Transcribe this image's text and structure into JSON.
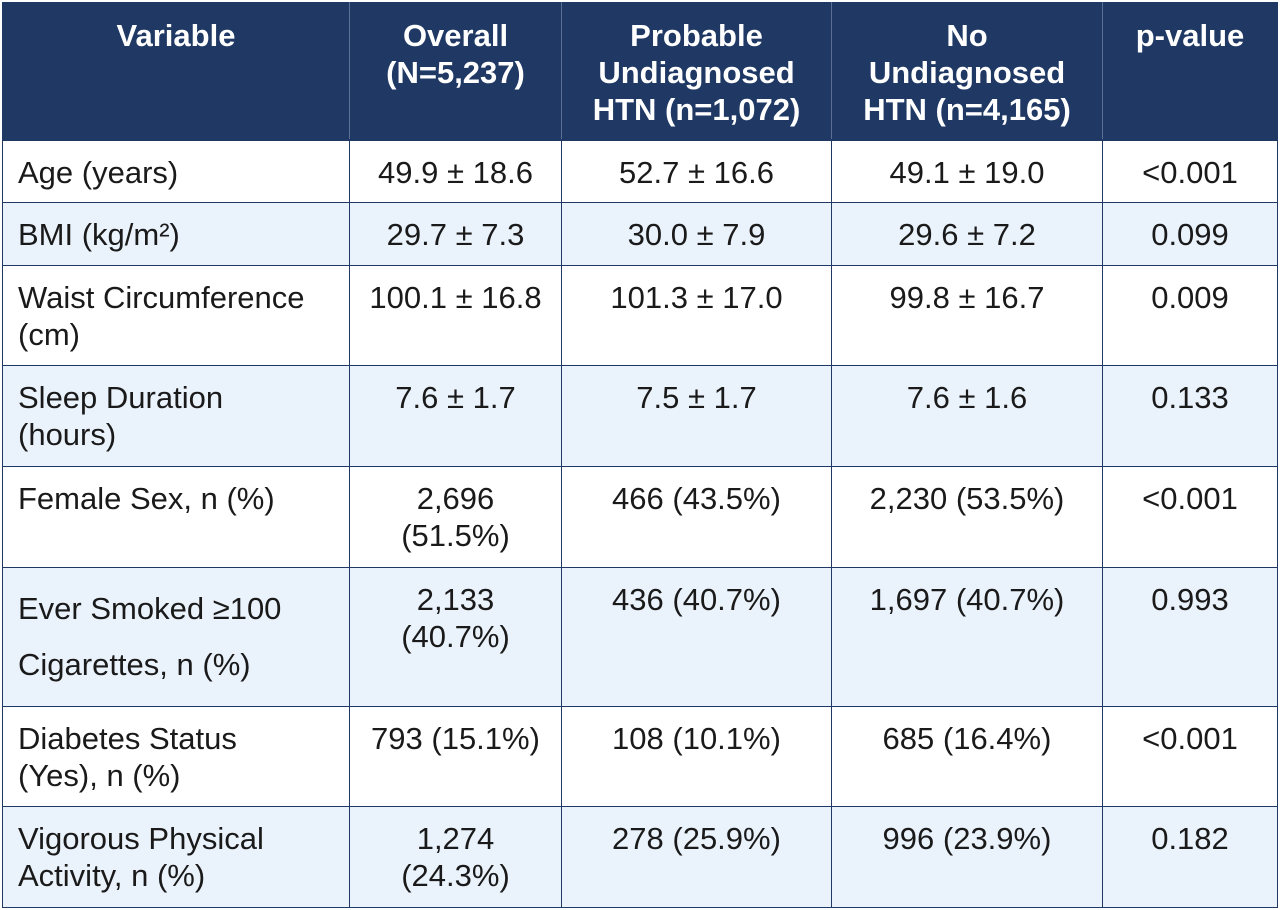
{
  "table": {
    "headers": [
      "Variable",
      "Overall (N=5,237)",
      "Probable Undiagnosed HTN (n=1,072)",
      "No Undiagnosed HTN (n=4,165)",
      "p-value"
    ],
    "header_lines": [
      [
        "Variable"
      ],
      [
        "Overall",
        "(N=5,237)"
      ],
      [
        "Probable",
        "Undiagnosed",
        "HTN (n=1,072)"
      ],
      [
        "No",
        "Undiagnosed",
        "HTN (n=4,165)"
      ],
      [
        "p-value"
      ]
    ],
    "rows": [
      {
        "variable": [
          "Age (years)"
        ],
        "overall": [
          "49.9 ± 18.6"
        ],
        "probable": [
          "52.7 ± 16.6"
        ],
        "no_htn": [
          "49.1 ± 19.0"
        ],
        "p_value": [
          "<0.001"
        ]
      },
      {
        "variable": [
          "BMI (kg/m²)"
        ],
        "overall": [
          "29.7 ± 7.3"
        ],
        "probable": [
          "30.0 ± 7.9"
        ],
        "no_htn": [
          "29.6 ± 7.2"
        ],
        "p_value": [
          "0.099"
        ]
      },
      {
        "variable": [
          "Waist Circumference",
          "(cm)"
        ],
        "overall": [
          "100.1 ± 16.8"
        ],
        "probable": [
          "101.3 ± 17.0"
        ],
        "no_htn": [
          "99.8 ± 16.7"
        ],
        "p_value": [
          "0.009"
        ]
      },
      {
        "variable": [
          "Sleep Duration",
          "(hours)"
        ],
        "overall": [
          "7.6 ± 1.7"
        ],
        "probable": [
          "7.5 ± 1.7"
        ],
        "no_htn": [
          "7.6 ± 1.6"
        ],
        "p_value": [
          "0.133"
        ]
      },
      {
        "variable": [
          "Female Sex, n (%)"
        ],
        "overall": [
          "2,696",
          "(51.5%)"
        ],
        "probable": [
          "466 (43.5%)"
        ],
        "no_htn": [
          "2,230 (53.5%)"
        ],
        "p_value": [
          "<0.001"
        ]
      },
      {
        "variable": [
          "Ever Smoked ≥100",
          "Cigarettes, n (%)"
        ],
        "overall": [
          "2,133",
          "(40.7%)"
        ],
        "probable": [
          "436 (40.7%)"
        ],
        "no_htn": [
          "1,697 (40.7%)"
        ],
        "p_value": [
          "0.993"
        ]
      },
      {
        "variable": [
          "Diabetes Status",
          "(Yes), n (%)"
        ],
        "overall": [
          "793 (15.1%)"
        ],
        "probable": [
          "108 (10.1%)"
        ],
        "no_htn": [
          "685 (16.4%)"
        ],
        "p_value": [
          "<0.001"
        ]
      },
      {
        "variable": [
          "Vigorous Physical",
          "Activity, n (%)"
        ],
        "overall": [
          "1,274",
          "(24.3%)"
        ],
        "probable": [
          "278 (25.9%)"
        ],
        "no_htn": [
          "996 (23.9%)"
        ],
        "p_value": [
          "0.182"
        ]
      }
    ]
  },
  "colors": {
    "header_bg": "#1f3864",
    "header_text": "#ffffff",
    "border": "#1f3864",
    "row_alt_bg": "#eaf2fb",
    "row_bg": "#ffffff"
  }
}
